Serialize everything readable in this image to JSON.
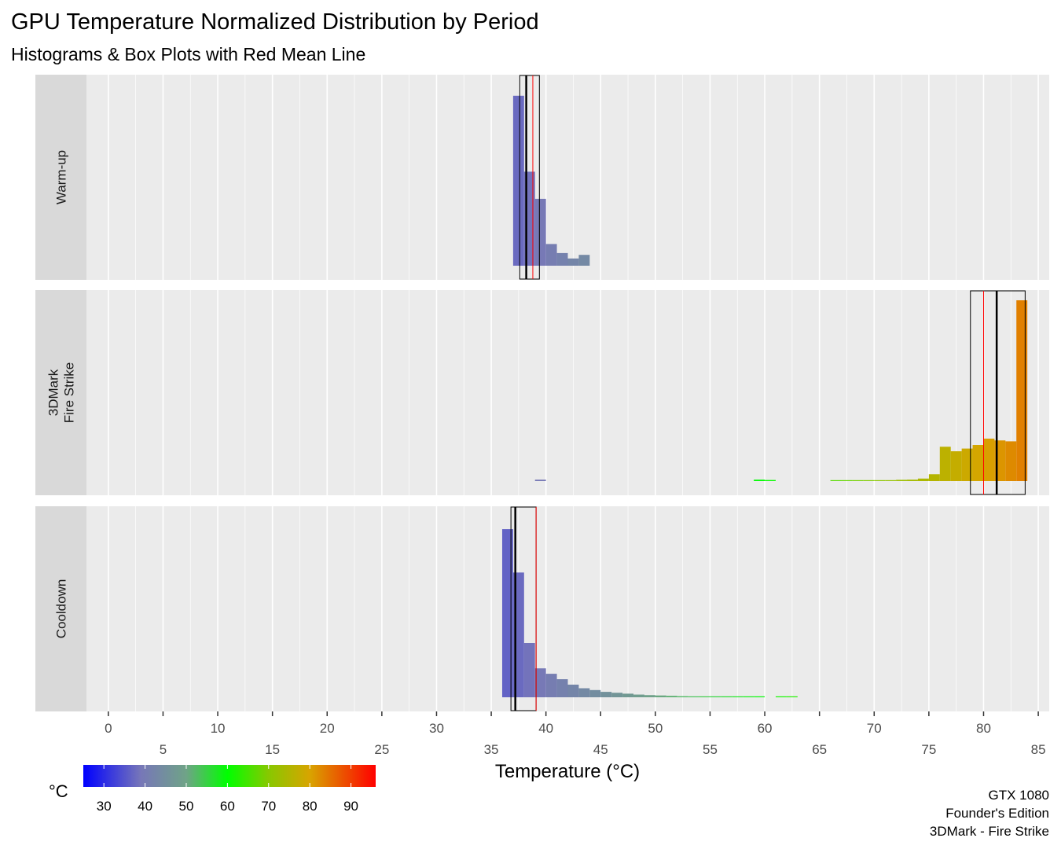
{
  "chart_data": {
    "type": "histogram",
    "title": "GPU Temperature Normalized Distribution by Period",
    "subtitle": "Histograms & Box Plots with Red Mean Line",
    "xlabel": "Temperature (°C)",
    "xlim": [
      -2,
      86
    ],
    "x_ticks_upper": [
      0,
      10,
      20,
      30,
      40,
      50,
      60,
      70,
      80
    ],
    "x_ticks_lower": [
      5,
      15,
      25,
      35,
      45,
      55,
      65,
      75,
      85
    ],
    "bin_width": 1,
    "panels": [
      {
        "label": "Warm-up",
        "bars": [
          [
            37,
            0.94
          ],
          [
            38,
            0.52
          ],
          [
            39,
            0.37
          ],
          [
            40,
            0.12
          ],
          [
            41,
            0.07
          ],
          [
            42,
            0.04
          ],
          [
            43,
            0.06
          ]
        ],
        "box": {
          "q1": 37.6,
          "median": 38.2,
          "q3": 39.4
        },
        "mean": 38.8
      },
      {
        "label": "3DMark\nFire Strike",
        "bars": [
          [
            39,
            0.008
          ],
          [
            59,
            0.008
          ],
          [
            60,
            0.006
          ],
          [
            66,
            0.003
          ],
          [
            67,
            0.003
          ],
          [
            68,
            0.003
          ],
          [
            69,
            0.004
          ],
          [
            70,
            0.004
          ],
          [
            71,
            0.004
          ],
          [
            72,
            0.007
          ],
          [
            73,
            0.008
          ],
          [
            74,
            0.014
          ],
          [
            75,
            0.038
          ],
          [
            76,
            0.19
          ],
          [
            77,
            0.165
          ],
          [
            78,
            0.18
          ],
          [
            79,
            0.2
          ],
          [
            80,
            0.235
          ],
          [
            81,
            0.225
          ],
          [
            82,
            0.22
          ],
          [
            83,
            1.0
          ]
        ],
        "box": {
          "q1": 78.8,
          "median": 81.2,
          "q3": 83.8
        },
        "mean": 80.0
      },
      {
        "label": "Cooldown",
        "bars": [
          [
            36,
            0.93
          ],
          [
            37,
            0.69
          ],
          [
            38,
            0.3
          ],
          [
            39,
            0.16
          ],
          [
            40,
            0.13
          ],
          [
            41,
            0.1
          ],
          [
            42,
            0.07
          ],
          [
            43,
            0.05
          ],
          [
            44,
            0.04
          ],
          [
            45,
            0.03
          ],
          [
            46,
            0.025
          ],
          [
            47,
            0.02
          ],
          [
            48,
            0.015
          ],
          [
            49,
            0.012
          ],
          [
            50,
            0.01
          ],
          [
            51,
            0.008
          ],
          [
            52,
            0.006
          ],
          [
            53,
            0.005
          ],
          [
            54,
            0.004
          ],
          [
            55,
            0.004
          ],
          [
            56,
            0.003
          ],
          [
            57,
            0.003
          ],
          [
            58,
            0.003
          ],
          [
            59,
            0.002
          ],
          [
            61,
            0.002
          ],
          [
            62,
            0.002
          ]
        ],
        "box": {
          "q1": 36.8,
          "median": 37.2,
          "q3": 39.1
        },
        "mean": 39.1
      }
    ],
    "legend": {
      "title": "°C",
      "placement": "bottom-left",
      "range": [
        25,
        96
      ],
      "ticks": [
        30,
        40,
        50,
        60,
        70,
        80,
        90
      ],
      "gradient_stops": [
        {
          "value": 25,
          "color": "#0000FF"
        },
        {
          "value": 39,
          "color": "#7777B8"
        },
        {
          "value": 50,
          "color": "#6FA387"
        },
        {
          "value": 60,
          "color": "#00FF00"
        },
        {
          "value": 70,
          "color": "#88C800"
        },
        {
          "value": 80,
          "color": "#D8A400"
        },
        {
          "value": 96,
          "color": "#FF0000"
        }
      ]
    },
    "colors": {
      "panel_background": "#EBEBEB",
      "strip_background": "#D9D9D9",
      "grid": "#FFFFFF",
      "mean_line": "#FF0000",
      "box_outline": "#000000"
    },
    "caption": [
      "GTX 1080",
      "Founder's Edition",
      "3DMark - Fire Strike"
    ]
  }
}
